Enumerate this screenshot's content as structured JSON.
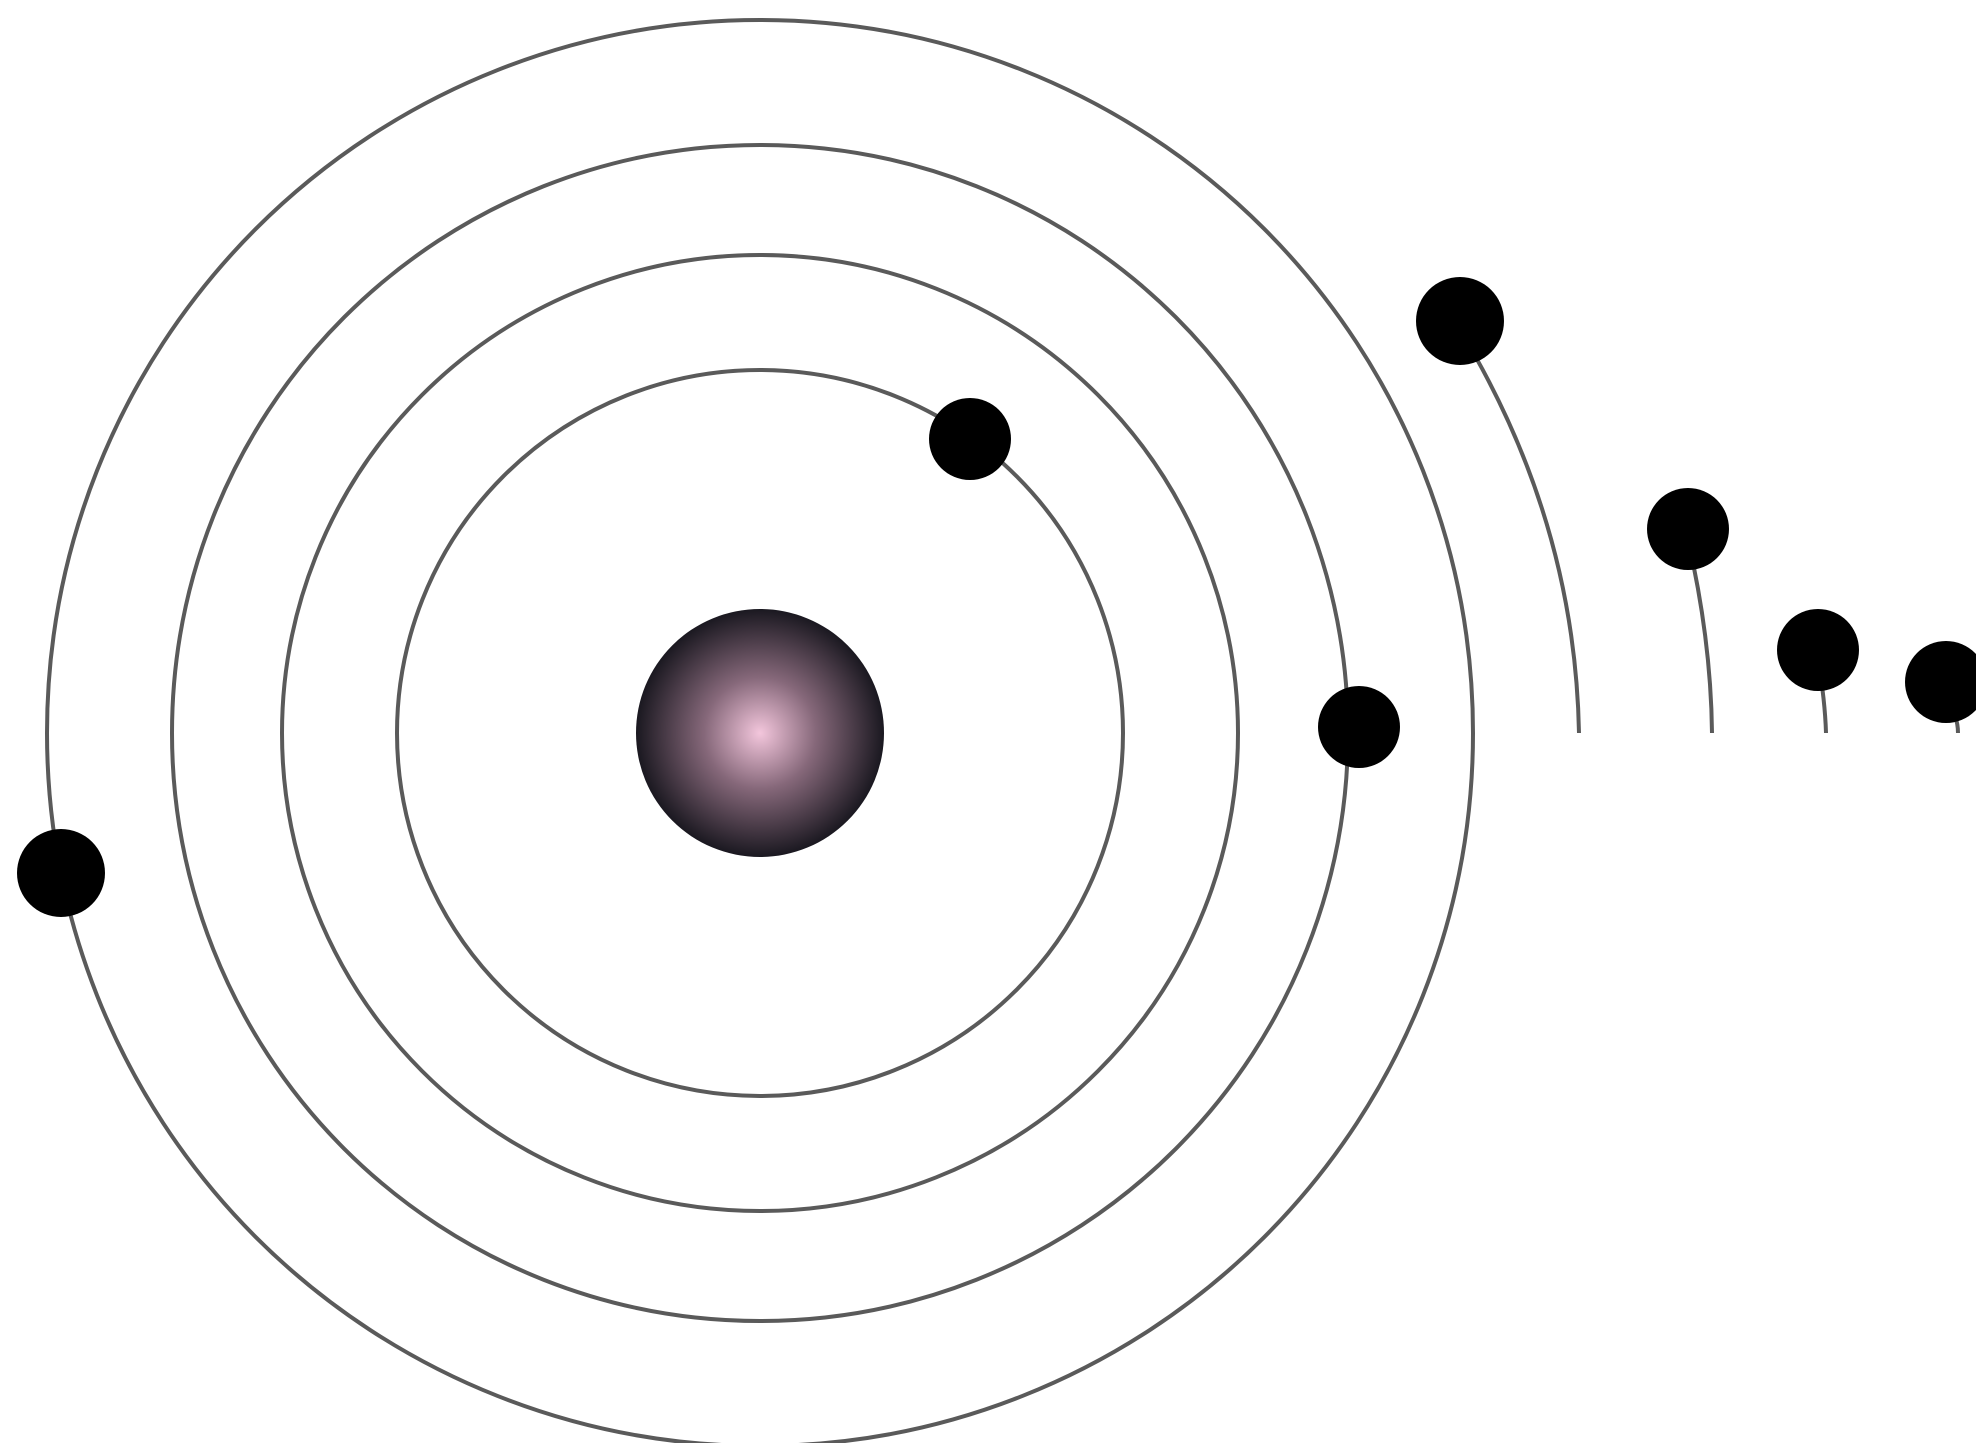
{
  "diagram": {
    "type": "atom-orbit-diagram",
    "nucleus": {
      "label": "",
      "color_center": "#f3c6dc",
      "color_edge": "#1a1820"
    },
    "orbit_color": "#5a5a5a",
    "electron_color": "#000000",
    "background": "#ffffff",
    "orbit_count": 4,
    "electron_count": 7,
    "trailing_arc_count": 4
  }
}
